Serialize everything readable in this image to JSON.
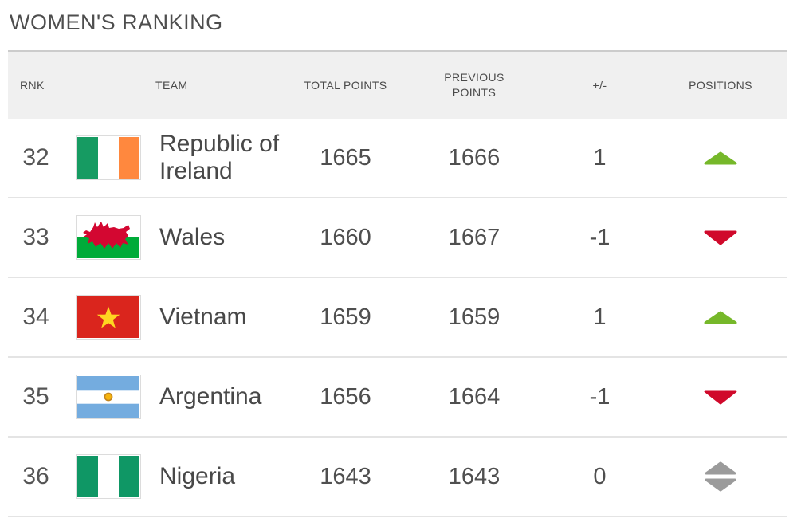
{
  "page": {
    "title": "WOMEN'S RANKING"
  },
  "table": {
    "columns": [
      "RNK",
      "TEAM",
      "TOTAL POINTS",
      "PREVIOUS POINTS",
      "+/-",
      "POSITIONS"
    ],
    "rows": [
      {
        "rank": "32",
        "team": "Republic of Ireland",
        "flag": "ireland",
        "total_points": "1665",
        "previous_points": "1666",
        "change": "1",
        "position_trend": "up"
      },
      {
        "rank": "33",
        "team": "Wales",
        "flag": "wales",
        "total_points": "1660",
        "previous_points": "1667",
        "change": "-1",
        "position_trend": "down"
      },
      {
        "rank": "34",
        "team": "Vietnam",
        "flag": "vietnam",
        "total_points": "1659",
        "previous_points": "1659",
        "change": "1",
        "position_trend": "up"
      },
      {
        "rank": "35",
        "team": "Argentina",
        "flag": "argentina",
        "total_points": "1656",
        "previous_points": "1664",
        "change": "-1",
        "position_trend": "down"
      },
      {
        "rank": "36",
        "team": "Nigeria",
        "flag": "nigeria",
        "total_points": "1643",
        "previous_points": "1643",
        "change": "0",
        "position_trend": "stable"
      }
    ]
  },
  "colors": {
    "trend_up": "#76b82a",
    "trend_down": "#d0092b",
    "trend_stable": "#9b9b9b",
    "header_bg": "#f0f0f0"
  }
}
